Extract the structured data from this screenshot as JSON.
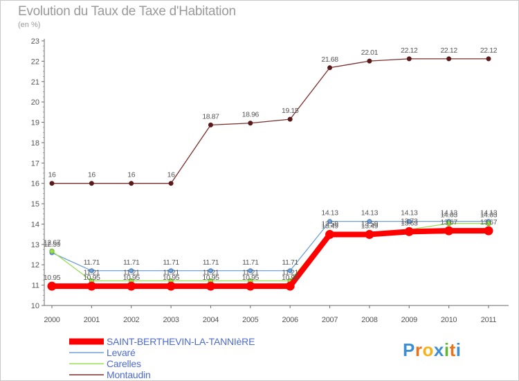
{
  "chart_data": {
    "type": "line",
    "title": "Evolution du Taux de Taxe d'Habitation",
    "ylabel": "(en %)",
    "xlabel": "",
    "x": [
      "2000",
      "2001",
      "2002",
      "2003",
      "2004",
      "2005",
      "2006",
      "2007",
      "2008",
      "2009",
      "2010",
      "2011"
    ],
    "ylim": [
      10,
      23
    ],
    "yticks": [
      "10",
      "11",
      "12",
      "13",
      "14",
      "15",
      "16",
      "17",
      "18",
      "19",
      "20",
      "21",
      "22",
      "23"
    ],
    "series": [
      {
        "name": "SAINT-BERTHEVIN-LA-TANNIèRE",
        "color": "#ff0000",
        "values": [
          10.95,
          10.95,
          10.95,
          10.95,
          10.95,
          10.95,
          10.95,
          13.49,
          13.49,
          13.63,
          13.67,
          13.67
        ],
        "labels": [
          "10.95",
          "10.95",
          "10.95",
          "10.95",
          "10.95",
          "10.95",
          "10.95",
          "13.49",
          "13.49",
          "13.63",
          "13.67",
          "13.67"
        ]
      },
      {
        "name": "Levaré",
        "color": "#6e9fd6",
        "values": [
          12.59,
          11.71,
          11.71,
          11.71,
          11.71,
          11.71,
          11.71,
          14.13,
          14.13,
          14.13,
          14.13,
          14.13
        ],
        "labels": [
          "12.59",
          "11.71",
          "11.71",
          "11.71",
          "11.71",
          "11.71",
          "11.71",
          "14.13",
          "14.13",
          "14.13",
          "14.13",
          "14.13"
        ]
      },
      {
        "name": "Carelles",
        "color": "#99dd55",
        "values": [
          12.67,
          11.21,
          11.21,
          11.21,
          11.21,
          11.21,
          11.21,
          13.59,
          13.59,
          13.73,
          14.03,
          14.03
        ],
        "labels": [
          "12.67",
          "11.21",
          "11.21",
          "11.21",
          "11.21",
          "11.21",
          "11.21",
          "13.59",
          "13.59",
          "13.73",
          "14.03",
          "14.03"
        ]
      },
      {
        "name": "Montaudin",
        "color": "#7a2c2c",
        "values": [
          16,
          16,
          16,
          16,
          18.87,
          18.96,
          19.15,
          21.68,
          22.01,
          22.12,
          22.12,
          22.12
        ],
        "labels": [
          "16",
          "16",
          "16",
          "16",
          "18.87",
          "18.96",
          "19.15",
          "21.68",
          "22.01",
          "22.12",
          "22.12",
          "22.12"
        ]
      }
    ],
    "legend": "bottom-left",
    "grid": false
  },
  "branding": {
    "logo_letters": [
      "P",
      "r",
      "o",
      "x",
      "i",
      "t",
      "i"
    ]
  }
}
